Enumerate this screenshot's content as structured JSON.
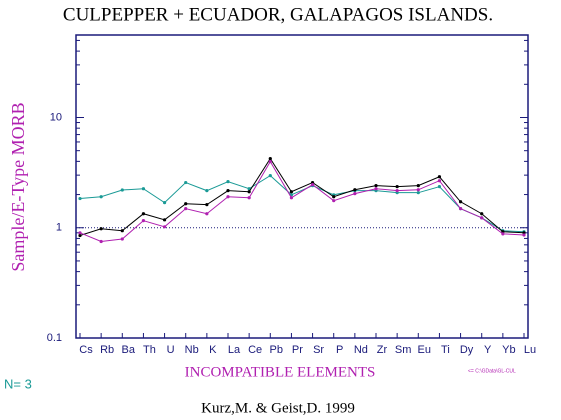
{
  "chart_data": {
    "type": "line",
    "title": "CULPEPPER + ECUADOR, GALAPAGOS ISLANDS.",
    "y_label": "Sample/E-Type MORB",
    "x_label": "INCOMPATIBLE ELEMENTS",
    "note": "N= 3",
    "file_note": "<= C:\\GData\\GL-CUL",
    "source": "Kurz,M. & Geist,D. 1999",
    "log_y": true,
    "categories": [
      "Cs",
      "Rb",
      "Ba",
      "Th",
      "U",
      "Nb",
      "K",
      "La",
      "Ce",
      "Pb",
      "Pr",
      "Sr",
      "P",
      "Nd",
      "Zr",
      "Sm",
      "Eu",
      "Ti",
      "Dy",
      "Y",
      "Yb",
      "Lu"
    ],
    "ylim": [
      0.1,
      56
    ],
    "yticks": [
      0.1,
      1,
      10
    ],
    "minor_yticks": [
      0.2,
      0.3,
      0.4,
      0.5,
      0.6,
      0.7,
      0.8,
      0.9,
      2,
      3,
      4,
      5,
      6,
      7,
      8,
      9,
      20,
      30,
      40,
      50
    ],
    "reference_line": 1,
    "series": [
      {
        "color": "#1a9a96",
        "values": [
          1.84,
          1.91,
          2.2,
          2.26,
          1.69,
          2.57,
          2.17,
          2.62,
          2.26,
          2.97,
          1.99,
          2.41,
          1.99,
          2.17,
          2.17,
          2.08,
          2.08,
          2.36,
          1.49,
          1.23,
          0.94,
          0.92
        ]
      },
      {
        "color": "#000000",
        "values": [
          0.85,
          0.98,
          0.94,
          1.34,
          1.18,
          1.65,
          1.62,
          2.17,
          2.12,
          4.24,
          2.12,
          2.57,
          1.91,
          2.21,
          2.41,
          2.36,
          2.41,
          2.9,
          1.72,
          1.34,
          0.92,
          0.9
        ]
      },
      {
        "color": "#b020b0",
        "values": [
          0.9,
          0.75,
          0.79,
          1.16,
          1.02,
          1.49,
          1.34,
          1.91,
          1.87,
          3.98,
          1.87,
          2.46,
          1.76,
          2.04,
          2.26,
          2.17,
          2.21,
          2.67,
          1.49,
          1.23,
          0.88,
          0.86
        ]
      }
    ]
  }
}
